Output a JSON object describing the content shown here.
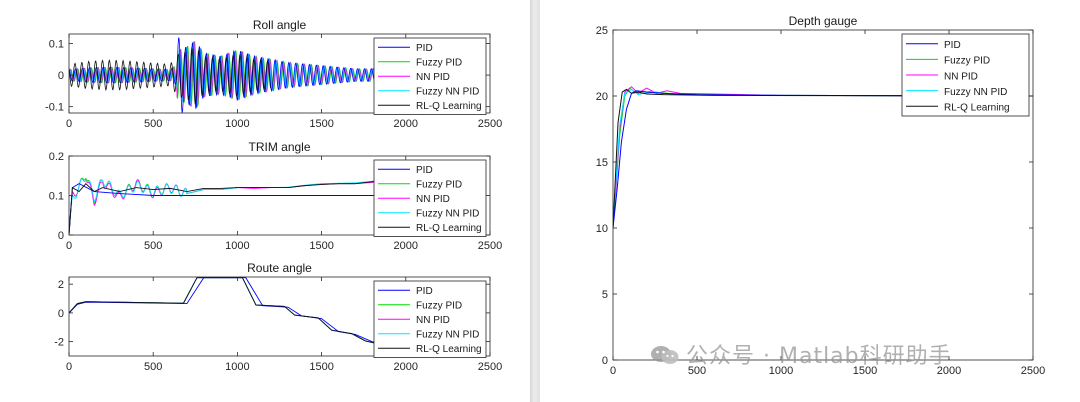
{
  "colors": {
    "PID": "#0000ff",
    "Fuzzy PID": "#00dd00",
    "NN PID": "#ff00ff",
    "Fuzzy NN PID": "#00e5ff",
    "RL-Q Learning": "#111111"
  },
  "watermark": {
    "text": "公众号 · Matlab科研助手",
    "icon": "wechat-icon"
  },
  "chart_data": [
    {
      "type": "line",
      "title": "Roll angle",
      "xlim": [
        0,
        2500
      ],
      "ylim": [
        -0.12,
        0.13
      ],
      "xticks": [
        0,
        500,
        1000,
        1500,
        2000,
        2500
      ],
      "yticks": [
        -0.1,
        0,
        0.1
      ],
      "yticklabels": [
        "-0.1",
        "0",
        "0.1"
      ],
      "legend_position": "top-right",
      "series": [
        {
          "name": "PID"
        },
        {
          "name": "Fuzzy PID"
        },
        {
          "name": "NN PID"
        },
        {
          "name": "Fuzzy NN PID"
        },
        {
          "name": "RL-Q Learning"
        }
      ],
      "x": [
        0,
        100,
        200,
        300,
        400,
        500,
        600,
        650,
        700,
        750,
        800,
        900,
        1000,
        1100,
        1200,
        1300,
        1400,
        1500,
        1600,
        1700,
        1800,
        1870
      ],
      "amplitude": [
        0.04,
        0.05,
        0.055,
        0.055,
        0.05,
        0.045,
        0.04,
        0.08,
        0.09,
        0.11,
        0.07,
        0.06,
        0.08,
        0.06,
        0.05,
        0.04,
        0.035,
        0.03,
        0.025,
        0.02,
        0.02,
        0.03
      ]
    },
    {
      "type": "line",
      "title": "TRIM angle",
      "xlim": [
        0,
        2500
      ],
      "ylim": [
        0,
        0.2
      ],
      "xticks": [
        0,
        500,
        1000,
        1500,
        2000,
        2500
      ],
      "yticks": [
        0,
        0.1,
        0.2
      ],
      "yticklabels": [
        "0",
        "0.1",
        "0.2"
      ],
      "legend_position": "top-right",
      "series": [
        {
          "name": "PID",
          "x": [
            0,
            20,
            60,
            150,
            300,
            500,
            700,
            1000,
            1300,
            1600,
            1870
          ],
          "y": [
            0,
            0.12,
            0.13,
            0.11,
            0.105,
            0.1,
            0.1,
            0.1,
            0.1,
            0.1,
            0.1
          ]
        },
        {
          "name": "Fuzzy PID",
          "x": [
            0,
            20,
            60,
            100,
            150,
            200,
            300,
            400,
            500,
            600,
            700,
            800,
            900,
            1000,
            1100,
            1200,
            1300,
            1400,
            1500,
            1600,
            1700,
            1800,
            1870
          ],
          "y": [
            0,
            0.1,
            0.12,
            0.155,
            0.09,
            0.14,
            0.1,
            0.13,
            0.11,
            0.12,
            0.105,
            0.115,
            0.115,
            0.12,
            0.12,
            0.12,
            0.12,
            0.125,
            0.13,
            0.13,
            0.13,
            0.135,
            0.14
          ]
        },
        {
          "name": "NN PID",
          "x": [
            0,
            20,
            60,
            100,
            150,
            200,
            300,
            400,
            500,
            600,
            700,
            800,
            900,
            1000,
            1100,
            1200,
            1300,
            1400,
            1500,
            1600,
            1700,
            1800,
            1870
          ],
          "y": [
            0,
            0.1,
            0.12,
            0.15,
            0.085,
            0.135,
            0.095,
            0.13,
            0.105,
            0.12,
            0.105,
            0.115,
            0.115,
            0.12,
            0.118,
            0.12,
            0.12,
            0.125,
            0.128,
            0.13,
            0.13,
            0.133,
            0.138
          ]
        },
        {
          "name": "Fuzzy NN PID",
          "x": [
            0,
            20,
            60,
            100,
            150,
            200,
            300,
            400,
            500,
            600,
            700,
            800,
            900,
            1000,
            1100,
            1200,
            1300,
            1400,
            1500,
            1600,
            1700,
            1800,
            1870
          ],
          "y": [
            0,
            0.09,
            0.12,
            0.15,
            0.095,
            0.14,
            0.1,
            0.125,
            0.11,
            0.118,
            0.105,
            0.115,
            0.115,
            0.12,
            0.12,
            0.12,
            0.121,
            0.126,
            0.13,
            0.131,
            0.132,
            0.136,
            0.14
          ]
        },
        {
          "name": "RL-Q Learning",
          "x": [
            0,
            20,
            60,
            100,
            150,
            200,
            300,
            400,
            500,
            600,
            700,
            800,
            900,
            1000,
            1100,
            1200,
            1300,
            1400,
            1500,
            1600,
            1700,
            1800,
            1870
          ],
          "y": [
            0,
            0.12,
            0.11,
            0.13,
            0.11,
            0.12,
            0.11,
            0.12,
            0.115,
            0.118,
            0.11,
            0.118,
            0.118,
            0.12,
            0.12,
            0.12,
            0.12,
            0.125,
            0.128,
            0.13,
            0.13,
            0.135,
            0.14
          ]
        }
      ]
    },
    {
      "type": "line",
      "title": "Route angle",
      "xlim": [
        0,
        2500
      ],
      "ylim": [
        -3,
        2.5
      ],
      "xticks": [
        0,
        500,
        1000,
        1500,
        2000,
        2500
      ],
      "yticks": [
        -2,
        0,
        2
      ],
      "yticklabels": [
        "-2",
        "0",
        "2"
      ],
      "legend_position": "top-right",
      "series": [
        {
          "name": "PID",
          "x": [
            0,
            50,
            100,
            700,
            800,
            1050,
            1150,
            1300,
            1380,
            1500,
            1600,
            1700,
            1800,
            2080,
            2200,
            2380
          ],
          "y": [
            0,
            0.6,
            0.75,
            0.65,
            2.45,
            2.45,
            0.5,
            0.4,
            -0.2,
            -0.4,
            -1.3,
            -1.5,
            -2.0,
            -2.8,
            -3.0,
            -2.9
          ]
        },
        {
          "name": "Fuzzy PID",
          "x": [
            0,
            50,
            100,
            680,
            760,
            1030,
            1110,
            1280,
            1340,
            1480,
            1560,
            1680,
            1760,
            2060,
            2160,
            2380
          ],
          "y": [
            0,
            0.65,
            0.78,
            0.68,
            2.45,
            2.45,
            0.55,
            0.45,
            -0.15,
            -0.35,
            -1.2,
            -1.45,
            -1.95,
            -2.75,
            -3.0,
            -2.9
          ]
        },
        {
          "name": "NN PID",
          "x": [
            0,
            50,
            100,
            680,
            760,
            1030,
            1110,
            1280,
            1340,
            1480,
            1560,
            1680,
            1760,
            2060,
            2160,
            2380
          ],
          "y": [
            0,
            0.65,
            0.78,
            0.68,
            2.45,
            2.45,
            0.55,
            0.45,
            -0.15,
            -0.35,
            -1.2,
            -1.45,
            -1.95,
            -2.75,
            -3.0,
            -2.9
          ]
        },
        {
          "name": "Fuzzy NN PID",
          "x": [
            0,
            50,
            100,
            680,
            760,
            1030,
            1110,
            1280,
            1340,
            1480,
            1560,
            1680,
            1760,
            2060,
            2160,
            2380
          ],
          "y": [
            0,
            0.65,
            0.78,
            0.68,
            2.45,
            2.45,
            0.55,
            0.45,
            -0.15,
            -0.35,
            -1.2,
            -1.45,
            -1.95,
            -2.75,
            -3.0,
            -2.9
          ]
        },
        {
          "name": "RL-Q Learning",
          "x": [
            0,
            50,
            100,
            680,
            760,
            1030,
            1110,
            1280,
            1340,
            1480,
            1560,
            1680,
            1760,
            2060,
            2160,
            2380
          ],
          "y": [
            0,
            0.65,
            0.78,
            0.68,
            2.45,
            2.45,
            0.55,
            0.45,
            -0.15,
            -0.35,
            -1.2,
            -1.45,
            -1.95,
            -2.75,
            -3.0,
            -2.9
          ]
        }
      ]
    },
    {
      "type": "line",
      "title": "Depth gauge",
      "xlim": [
        0,
        2500
      ],
      "ylim": [
        0,
        25
      ],
      "xticks": [
        0,
        500,
        1000,
        1500,
        2000,
        2500
      ],
      "yticks": [
        0,
        5,
        10,
        15,
        20,
        25
      ],
      "yticklabels": [
        "0",
        "5",
        "10",
        "15",
        "20",
        "25"
      ],
      "legend_position": "top-right",
      "series": [
        {
          "name": "PID",
          "x": [
            0,
            25,
            50,
            80,
            110,
            140,
            200,
            300,
            500,
            1000,
            2500
          ],
          "y": [
            10,
            13,
            16.5,
            19,
            20.2,
            20.4,
            20.3,
            20.2,
            20.1,
            20.05,
            20
          ]
        },
        {
          "name": "Fuzzy PID",
          "x": [
            0,
            20,
            40,
            70,
            100,
            130,
            180,
            250,
            400,
            1000,
            2500
          ],
          "y": [
            10,
            13.5,
            17,
            20,
            20.6,
            20.3,
            20.2,
            20.3,
            20.1,
            20.05,
            20
          ]
        },
        {
          "name": "NN PID",
          "x": [
            0,
            20,
            40,
            70,
            110,
            150,
            200,
            260,
            320,
            400,
            600,
            1000,
            2500
          ],
          "y": [
            10,
            13.5,
            17.5,
            20.3,
            20.7,
            20.2,
            20.6,
            20.2,
            20.4,
            20.2,
            20.15,
            20.05,
            20
          ]
        },
        {
          "name": "Fuzzy NN PID",
          "x": [
            0,
            20,
            40,
            70,
            110,
            150,
            220,
            300,
            500,
            1000,
            2500
          ],
          "y": [
            10,
            14,
            17.8,
            20.2,
            20.5,
            20.1,
            20.35,
            20.2,
            20.1,
            20.05,
            20
          ]
        },
        {
          "name": "RL-Q Learning",
          "x": [
            0,
            15,
            30,
            55,
            80,
            110,
            150,
            200,
            300,
            600,
            2500
          ],
          "y": [
            10,
            14,
            18,
            20.3,
            20.5,
            20.2,
            20.3,
            20.15,
            20.1,
            20.05,
            20
          ]
        }
      ]
    }
  ]
}
